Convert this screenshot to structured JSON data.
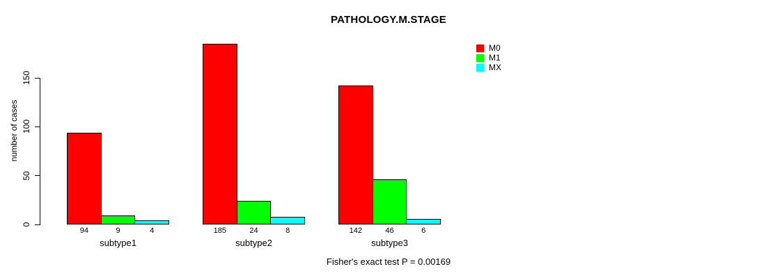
{
  "title": "PATHOLOGY.M.STAGE",
  "ylabel": "number of cases",
  "footer": "Fisher's exact test P = 0.00169",
  "colors": {
    "M0": "#ff0000",
    "M1": "#00ff00",
    "MX": "#00ffff",
    "axis": "#000000",
    "background": "#ffffff"
  },
  "chart_data": {
    "type": "bar",
    "title": "PATHOLOGY.M.STAGE",
    "xlabel": "",
    "ylabel": "number of cases",
    "categories": [
      "subtype1",
      "subtype2",
      "subtype3"
    ],
    "series": [
      {
        "name": "M0",
        "color": "#ff0000",
        "values": [
          94,
          185,
          142
        ]
      },
      {
        "name": "M1",
        "color": "#00ff00",
        "values": [
          9,
          24,
          46
        ]
      },
      {
        "name": "MX",
        "color": "#00ffff",
        "values": [
          4,
          8,
          6
        ]
      }
    ],
    "bar_value_labels": [
      [
        "94",
        "9",
        "4"
      ],
      [
        "185",
        "24",
        "8"
      ],
      [
        "142",
        "46",
        "6"
      ]
    ],
    "yticks": [
      0,
      50,
      100,
      150
    ],
    "ylim": [
      0,
      186
    ],
    "grid": false,
    "legend": {
      "position": "top-right",
      "entries": [
        {
          "label": "M0",
          "color": "#ff0000"
        },
        {
          "label": "M1",
          "color": "#00ff00"
        },
        {
          "label": "MX",
          "color": "#00ffff"
        }
      ]
    },
    "annotation": "Fisher's exact test P = 0.00169"
  }
}
